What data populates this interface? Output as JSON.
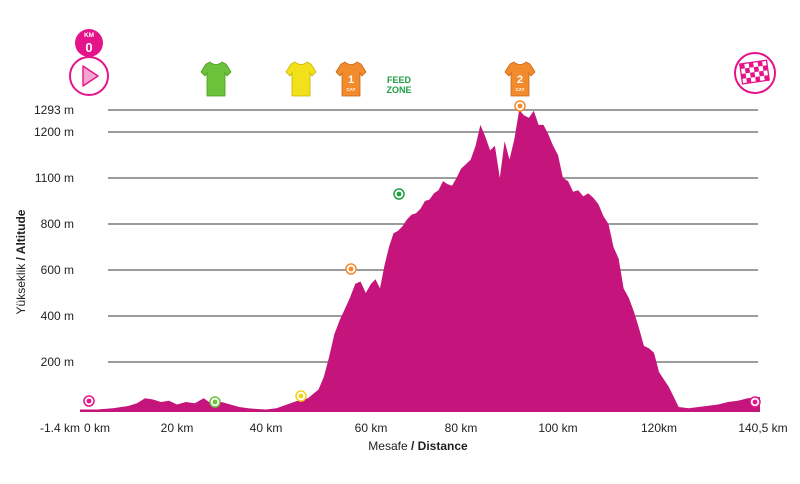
{
  "colors": {
    "profile": "#c5157c",
    "grid": "#3a3a3a",
    "sprint_jersey": "#6cc23a",
    "yellow_jersey": "#f2e11a",
    "climb_jersey": "#f28b2c",
    "feed_zone": "#1f9e43",
    "brand": "#e5138a"
  },
  "icons": {
    "start": "play-icon",
    "finish": "checkered-flag-icon",
    "sprint": "green-jersey-icon",
    "bonus": "yellow-jersey-icon",
    "climb": "orange-jersey-icon"
  },
  "top_markers": {
    "km_label": "KM",
    "km_value": "0",
    "climb1_number": "1",
    "climb1_cat": "CAT",
    "climb2_number": "2",
    "climb2_cat": "CAT",
    "feed_line1": "FEED",
    "feed_line2": "ZONE"
  },
  "chart_data": {
    "type": "area",
    "xlabel_light": "Mesafe",
    "xlabel_bold": "/ Distance",
    "ylabel_light": "Yükseklik",
    "ylabel_bold": "/ Altitude",
    "x_tick_labels": [
      "-1.4 km",
      "0 km",
      "20 km",
      "40 km",
      "60 km",
      "80 km",
      "100 km",
      "120km",
      "140,5 km"
    ],
    "y_tick_labels": [
      "1293 m",
      "1200 m",
      "1100 m",
      "800 m",
      "600 m",
      "400 m",
      "200 m"
    ],
    "x_range_km": [
      -1.4,
      140.5
    ],
    "profile": {
      "x": [
        -1.4,
        0,
        4,
        8,
        10,
        12,
        14,
        16,
        18,
        20,
        22,
        24,
        26,
        28,
        30,
        32,
        34,
        36,
        38,
        40,
        42,
        44,
        46,
        48,
        50,
        51,
        52,
        53,
        54,
        55,
        56,
        57,
        58,
        59,
        60,
        61,
        62,
        63,
        64,
        65,
        66,
        67,
        68,
        69,
        70,
        71,
        72,
        73,
        74,
        75,
        76,
        77,
        78,
        79,
        80,
        81,
        82,
        83,
        84,
        85,
        86,
        87,
        88,
        89,
        90,
        91,
        92,
        93,
        94,
        95,
        96,
        97,
        98,
        99,
        100,
        101,
        102,
        103,
        104,
        105,
        106,
        107,
        108,
        109,
        110,
        111,
        112,
        113,
        114,
        115,
        116,
        117,
        118,
        119,
        120,
        121,
        122,
        123,
        124,
        126,
        128,
        130,
        132,
        134,
        136,
        138,
        140.5
      ],
      "y": [
        10,
        10,
        15,
        25,
        35,
        55,
        50,
        40,
        45,
        30,
        40,
        35,
        55,
        30,
        40,
        30,
        20,
        15,
        12,
        10,
        15,
        30,
        45,
        55,
        90,
        140,
        220,
        320,
        380,
        430,
        480,
        540,
        550,
        500,
        540,
        560,
        520,
        620,
        700,
        760,
        770,
        790,
        830,
        860,
        870,
        900,
        950,
        960,
        1000,
        1020,
        1080,
        1060,
        1050,
        1100,
        1120,
        1130,
        1140,
        1170,
        1230,
        1190,
        1160,
        1170,
        1100,
        1180,
        1140,
        1185,
        1293,
        1270,
        1260,
        1290,
        1230,
        1230,
        1195,
        1170,
        1150,
        1100,
        1080,
        1010,
        1020,
        980,
        1000,
        970,
        930,
        850,
        800,
        700,
        650,
        520,
        480,
        420,
        350,
        270,
        260,
        240,
        160,
        130,
        100,
        60,
        20,
        15,
        20,
        25,
        30,
        40,
        45,
        55,
        60
      ]
    },
    "grid": true
  }
}
